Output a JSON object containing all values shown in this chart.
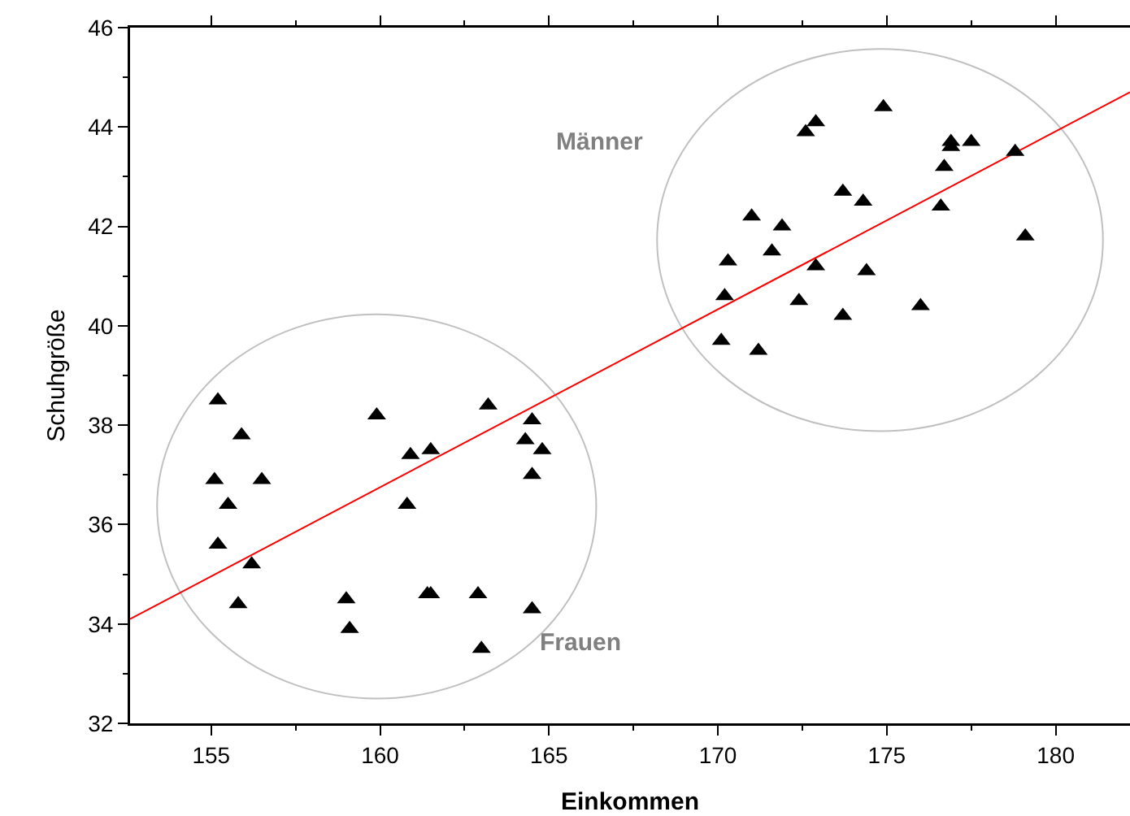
{
  "chart_data": {
    "type": "scatter",
    "xlabel": "Einkommen",
    "ylabel": "Schuhgröße",
    "xlim": [
      152.6,
      182.2
    ],
    "xticks": [
      155,
      160,
      165,
      170,
      175,
      180
    ],
    "ylim": [
      32,
      46
    ],
    "yticks": [
      32,
      34,
      36,
      38,
      40,
      42,
      44,
      46
    ],
    "grid": false,
    "marker": "triangle",
    "annotations": [
      "Männer",
      "Frauen"
    ],
    "series": [
      {
        "color": "#000000",
        "x": [
          155.2,
          155.9,
          155.1,
          156.5,
          155.5,
          155.2,
          156.2,
          155.8,
          159.9,
          159.0,
          159.1,
          160.9,
          161.5,
          160.8,
          161.4,
          161.5,
          163.2,
          162.9,
          163.0,
          164.5,
          164.3,
          164.8,
          164.5,
          164.5,
          174.9,
          172.9,
          172.6,
          176.9,
          176.9,
          177.5,
          178.8,
          176.7,
          173.7,
          174.3,
          176.6,
          171.0,
          171.9,
          171.6,
          170.3,
          179.1,
          172.9,
          174.4,
          170.2,
          172.4,
          173.7,
          176.0,
          170.1,
          171.2
        ],
        "values": [
          38.5,
          37.8,
          36.9,
          36.9,
          36.4,
          35.6,
          35.2,
          34.4,
          38.2,
          34.5,
          33.9,
          37.4,
          37.5,
          36.4,
          34.6,
          34.6,
          38.4,
          34.6,
          33.5,
          38.1,
          37.7,
          37.5,
          37.0,
          34.3,
          44.4,
          44.1,
          43.9,
          43.7,
          43.6,
          43.7,
          43.5,
          43.2,
          42.7,
          42.5,
          42.4,
          42.2,
          42.0,
          41.5,
          41.3,
          41.8,
          41.2,
          41.1,
          40.6,
          40.5,
          40.2,
          40.4,
          39.7,
          39.5
        ]
      },
      {
        "type": "line",
        "color": "#ff0000",
        "line_style": "solid",
        "marker": "none",
        "x": [
          152.6,
          182.2
        ],
        "values": [
          34.1,
          44.7
        ]
      }
    ]
  }
}
